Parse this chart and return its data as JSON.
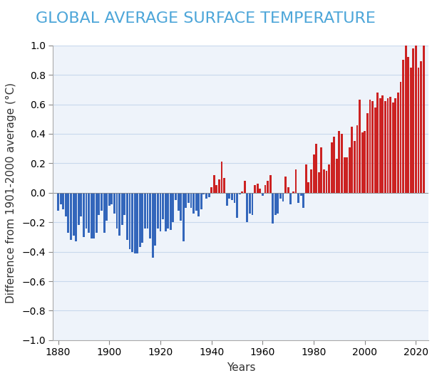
{
  "title": "GLOBAL AVERAGE SURFACE TEMPERATURE",
  "xlabel": "Years",
  "ylabel": "Difference from 1901-2000 average (°C)",
  "ylim": [
    -1.0,
    1.0
  ],
  "xlim": [
    1878,
    2025
  ],
  "title_color": "#4DA6D9",
  "title_fontsize": 16,
  "label_fontsize": 11,
  "tick_fontsize": 10,
  "background_color": "#FFFFFF",
  "plot_bg_color": "#EEF3FA",
  "grid_color": "#C8D8EC",
  "bar_color_hot": "#CC2222",
  "bar_color_cold": "#3366BB",
  "bar_width": 0.8,
  "years": [
    1880,
    1881,
    1882,
    1883,
    1884,
    1885,
    1886,
    1887,
    1888,
    1889,
    1890,
    1891,
    1892,
    1893,
    1894,
    1895,
    1896,
    1897,
    1898,
    1899,
    1900,
    1901,
    1902,
    1903,
    1904,
    1905,
    1906,
    1907,
    1908,
    1909,
    1910,
    1911,
    1912,
    1913,
    1914,
    1915,
    1916,
    1917,
    1918,
    1919,
    1920,
    1921,
    1922,
    1923,
    1924,
    1925,
    1926,
    1927,
    1928,
    1929,
    1930,
    1931,
    1932,
    1933,
    1934,
    1935,
    1936,
    1937,
    1938,
    1939,
    1940,
    1941,
    1942,
    1943,
    1944,
    1945,
    1946,
    1947,
    1948,
    1949,
    1950,
    1951,
    1952,
    1953,
    1954,
    1955,
    1956,
    1957,
    1958,
    1959,
    1960,
    1961,
    1962,
    1963,
    1964,
    1965,
    1966,
    1967,
    1968,
    1969,
    1970,
    1971,
    1972,
    1973,
    1974,
    1975,
    1976,
    1977,
    1978,
    1979,
    1980,
    1981,
    1982,
    1983,
    1984,
    1985,
    1986,
    1987,
    1988,
    1989,
    1990,
    1991,
    1992,
    1993,
    1994,
    1995,
    1996,
    1997,
    1998,
    1999,
    2000,
    2001,
    2002,
    2003,
    2004,
    2005,
    2006,
    2007,
    2008,
    2009,
    2010,
    2011,
    2012,
    2013,
    2014,
    2015,
    2016,
    2017,
    2018,
    2019,
    2020,
    2021,
    2022,
    2023
  ],
  "anomalies": [
    -0.12,
    -0.08,
    -0.11,
    -0.16,
    -0.27,
    -0.32,
    -0.29,
    -0.33,
    -0.22,
    -0.16,
    -0.3,
    -0.24,
    -0.27,
    -0.31,
    -0.31,
    -0.27,
    -0.15,
    -0.12,
    -0.27,
    -0.19,
    -0.09,
    -0.08,
    -0.14,
    -0.24,
    -0.29,
    -0.22,
    -0.15,
    -0.32,
    -0.38,
    -0.4,
    -0.41,
    -0.41,
    -0.37,
    -0.34,
    -0.24,
    -0.24,
    -0.31,
    -0.44,
    -0.36,
    -0.24,
    -0.26,
    -0.18,
    -0.26,
    -0.24,
    -0.25,
    -0.2,
    -0.05,
    -0.12,
    -0.19,
    -0.33,
    -0.1,
    -0.07,
    -0.1,
    -0.14,
    -0.12,
    -0.16,
    -0.11,
    -0.01,
    -0.04,
    -0.03,
    0.04,
    0.12,
    0.05,
    0.09,
    0.21,
    0.1,
    -0.09,
    -0.04,
    -0.05,
    -0.07,
    -0.17,
    -0.01,
    0.01,
    0.08,
    -0.2,
    -0.14,
    -0.15,
    0.05,
    0.06,
    0.03,
    -0.02,
    0.05,
    0.08,
    0.12,
    -0.21,
    -0.15,
    -0.14,
    -0.04,
    -0.06,
    0.11,
    0.04,
    -0.08,
    0.01,
    0.16,
    -0.07,
    -0.02,
    -0.1,
    0.19,
    0.07,
    0.16,
    0.26,
    0.33,
    0.14,
    0.31,
    0.16,
    0.15,
    0.19,
    0.34,
    0.38,
    0.23,
    0.42,
    0.4,
    0.24,
    0.24,
    0.31,
    0.45,
    0.35,
    0.46,
    0.63,
    0.41,
    0.42,
    0.54,
    0.63,
    0.62,
    0.58,
    0.68,
    0.64,
    0.66,
    0.62,
    0.64,
    0.65,
    0.61,
    0.64,
    0.68,
    0.75,
    0.9,
    1.0,
    0.92,
    0.85,
    0.98,
    1.02,
    0.85,
    0.89,
    1.17
  ]
}
